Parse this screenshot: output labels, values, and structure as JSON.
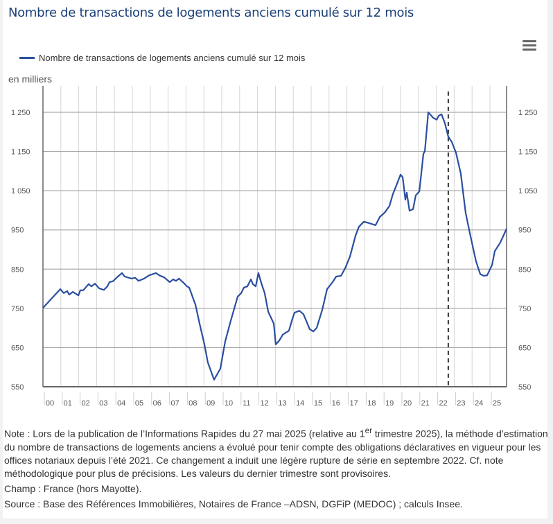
{
  "title": "Nombre de transactions de logements anciens cumulé sur 12 mois",
  "menu_icon": "hamburger-menu-icon",
  "chart_data": {
    "type": "line",
    "title": "Nombre de transactions de logements anciens cumulé sur 12 mois",
    "ylabel": "en milliers",
    "ylim": [
      550,
      1250
    ],
    "yticks": [
      550,
      650,
      750,
      850,
      950,
      1050,
      1150,
      1250
    ],
    "ytick_labels": [
      "550",
      "650",
      "750",
      "850",
      "950",
      "1 050",
      "1 150",
      "1 250"
    ],
    "xlim": [
      2000,
      2026
    ],
    "xtick_labels": [
      "00",
      "01",
      "02",
      "03",
      "04",
      "05",
      "06",
      "07",
      "08",
      "09",
      "10",
      "11",
      "12",
      "13",
      "14",
      "15",
      "16",
      "17",
      "18",
      "19",
      "20",
      "21",
      "22",
      "23",
      "24",
      "25"
    ],
    "grid": true,
    "legend": "top-left",
    "vline": {
      "x": 2022.67,
      "style": "dashed",
      "color": "#333333"
    },
    "series": [
      {
        "name": "Nombre de transactions de logements anciens cumulé sur 12 mois",
        "color": "#2a4fa0",
        "x": [
          2000.0,
          2000.97,
          2001.16,
          2001.36,
          2001.47,
          2001.67,
          2001.98,
          2002.09,
          2002.25,
          2002.56,
          2002.71,
          2002.91,
          2003.14,
          2003.41,
          2003.6,
          2003.72,
          2003.91,
          2004.19,
          2004.42,
          2004.57,
          2004.96,
          2005.16,
          2005.35,
          2005.66,
          2005.93,
          2006.32,
          2006.51,
          2006.78,
          2007.09,
          2007.29,
          2007.44,
          2007.6,
          2007.87,
          2008.06,
          2008.18,
          2008.53,
          2008.76,
          2009.03,
          2009.22,
          2009.42,
          2009.57,
          2009.92,
          2010.19,
          2010.5,
          2010.89,
          2011.09,
          2011.24,
          2011.43,
          2011.63,
          2011.74,
          2011.9,
          2012.05,
          2012.21,
          2012.4,
          2012.6,
          2012.91,
          2013.02,
          2013.22,
          2013.41,
          2013.76,
          2013.95,
          2014.07,
          2014.34,
          2014.57,
          2014.92,
          2015.12,
          2015.31,
          2015.62,
          2015.89,
          2016.2,
          2016.4,
          2016.67,
          2016.9,
          2017.17,
          2017.48,
          2017.67,
          2017.95,
          2018.26,
          2018.6,
          2018.84,
          2019.11,
          2019.38,
          2019.57,
          2019.77,
          2020.0,
          2020.12,
          2020.27,
          2020.35,
          2020.5,
          2020.7,
          2020.85,
          2021.05,
          2021.28,
          2021.36,
          2021.55,
          2021.82,
          2022.02,
          2022.13,
          2022.29,
          2022.48,
          2022.67,
          2022.87,
          2023.1,
          2023.37,
          2023.64,
          2023.88,
          2024.22,
          2024.46,
          2024.65,
          2024.84,
          2025.12,
          2025.27,
          2025.58,
          2025.93
        ],
        "values": [
          751,
          799,
          789,
          794,
          785,
          792,
          783,
          796,
          796,
          812,
          806,
          813,
          801,
          797,
          806,
          817,
          819,
          831,
          840,
          831,
          826,
          828,
          820,
          826,
          834,
          840,
          834,
          829,
          817,
          824,
          820,
          826,
          815,
          806,
          803,
          759,
          711,
          658,
          612,
          587,
          568,
          596,
          665,
          718,
          780,
          789,
          803,
          806,
          824,
          812,
          806,
          840,
          815,
          789,
          741,
          711,
          658,
          668,
          683,
          693,
          723,
          739,
          744,
          735,
          697,
          691,
          700,
          746,
          799,
          817,
          831,
          833,
          852,
          882,
          935,
          958,
          971,
          967,
          962,
          983,
          994,
          1011,
          1041,
          1064,
          1091,
          1084,
          1027,
          1045,
          999,
          1003,
          1038,
          1048,
          1144,
          1151,
          1250,
          1236,
          1231,
          1241,
          1245,
          1222,
          1188,
          1174,
          1147,
          1094,
          994,
          941,
          870,
          837,
          833,
          834,
          861,
          896,
          918,
          953
        ]
      }
    ]
  },
  "notes": {
    "note_before": "Note : Lors de la publication de l’Informations Rapides du 27 mai 2025 (relative au 1",
    "note_sup": "er",
    "note_after": " trimestre 2025), la méthode d’estimation du nombre de transactions de logements anciens a évolué pour tenir compte des obligations déclaratives en vigueur pour les offices notariaux depuis l’été 2021. Ce changement a induit une légère rupture de série en septembre 2022. Cf. note méthodologique pour plus de précisions. Les valeurs du dernier trimestre sont provisoires.",
    "champ": "Champ : France (hors Mayotte).",
    "source": "Source : Base des Références Immobilières, Notaires de France –ADSN, DGFiP (MEDOC) ; calculs Insee."
  }
}
